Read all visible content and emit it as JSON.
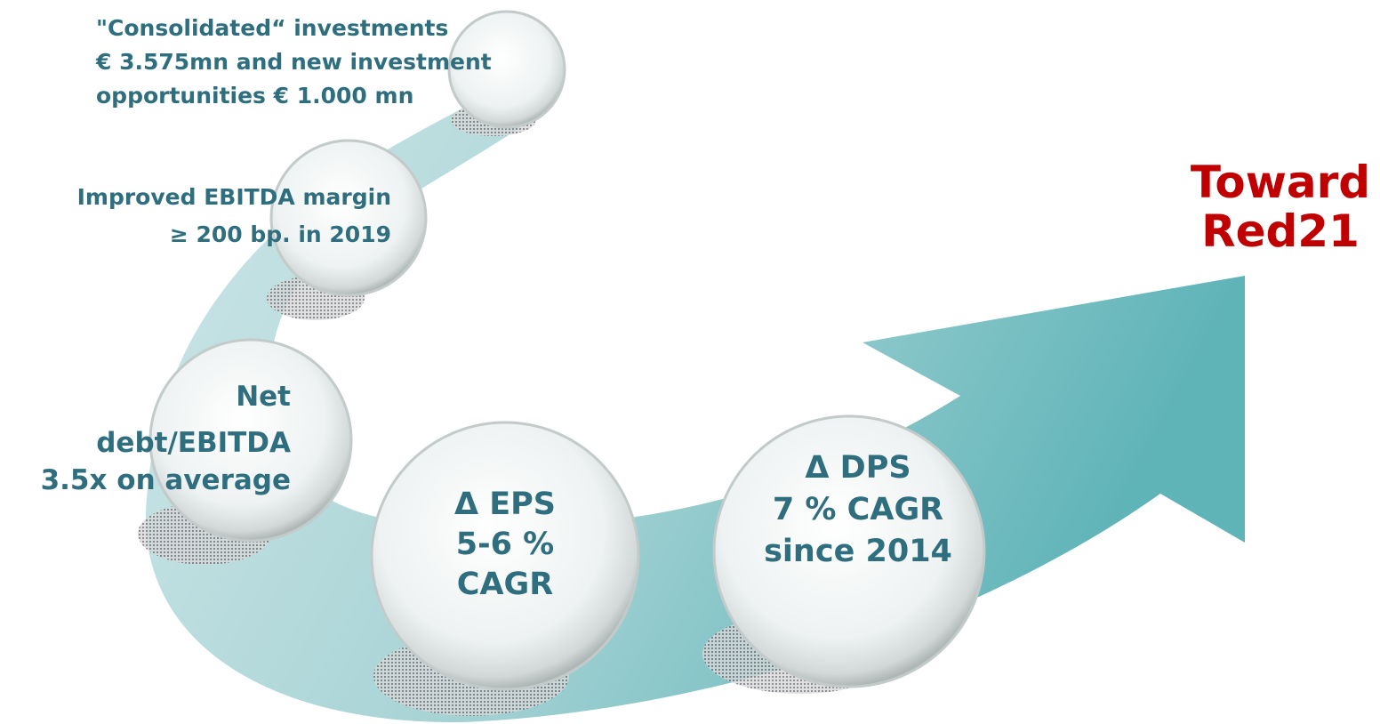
{
  "title": {
    "lines": [
      "Toward",
      "Red21"
    ]
  },
  "nodes": [
    {
      "lines": [
        "\"Consolidated“ investments",
        "€ 3.575mn and new investment",
        "opportunities € 1.000 mn"
      ]
    },
    {
      "lines": [
        "Improved  EBITDA margin",
        "≥ 200 bp. in 2019"
      ]
    },
    {
      "lines": [
        "Net",
        "debt/EBITDA",
        "3.5x on average"
      ]
    },
    {
      "lines": [
        "Δ EPS",
        "5-6 %",
        "CAGR"
      ]
    },
    {
      "lines": [
        "Δ DPS",
        "7 % CAGR",
        "since 2014"
      ]
    }
  ]
}
